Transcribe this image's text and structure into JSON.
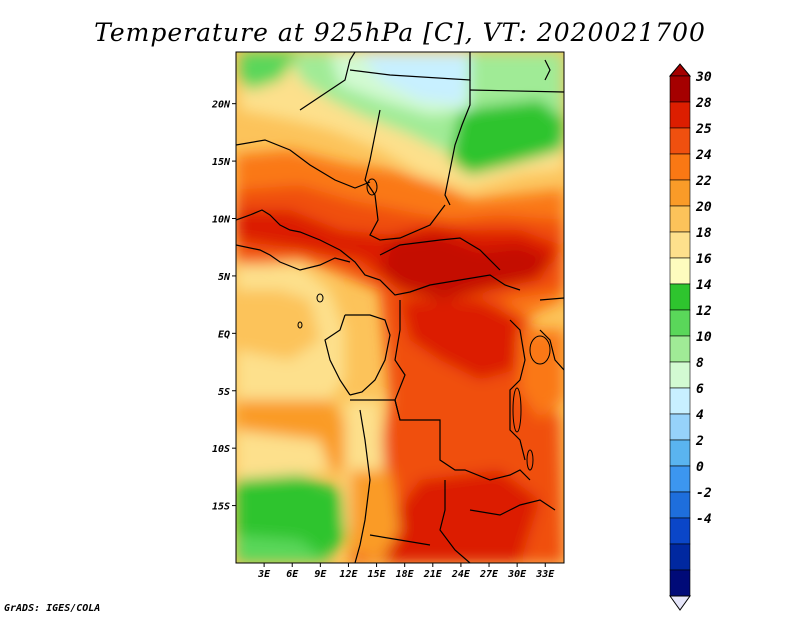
{
  "title": "Temperature at 925hPa [C], VT: 2020021700",
  "footer": "GrADS: IGES/COLA",
  "map": {
    "region": "Central Africa",
    "lon_range": [
      0,
      35
    ],
    "lat_range": [
      -20,
      24.5
    ],
    "lat_ticks": [
      {
        "value": 20,
        "label": "20N"
      },
      {
        "value": 15,
        "label": "15N"
      },
      {
        "value": 10,
        "label": "10N"
      },
      {
        "value": 5,
        "label": "5N"
      },
      {
        "value": 0,
        "label": "EQ"
      },
      {
        "value": -5,
        "label": "5S"
      },
      {
        "value": -10,
        "label": "10S"
      },
      {
        "value": -15,
        "label": "15S"
      }
    ],
    "lon_ticks": [
      {
        "value": 3,
        "label": "3E"
      },
      {
        "value": 6,
        "label": "6E"
      },
      {
        "value": 9,
        "label": "9E"
      },
      {
        "value": 12,
        "label": "12E"
      },
      {
        "value": 15,
        "label": "15E"
      },
      {
        "value": 18,
        "label": "18E"
      },
      {
        "value": 21,
        "label": "21E"
      },
      {
        "value": 24,
        "label": "24E"
      },
      {
        "value": 27,
        "label": "27E"
      },
      {
        "value": 30,
        "label": "30E"
      },
      {
        "value": 33,
        "label": "33E"
      }
    ]
  },
  "colorbar": {
    "levels": [
      {
        "label": "30",
        "color": "#a50000"
      },
      {
        "label": "28",
        "color": "#dc1e00"
      },
      {
        "label": "25",
        "color": "#f0500f"
      },
      {
        "label": "24",
        "color": "#fa7814"
      },
      {
        "label": "22",
        "color": "#fa9b28"
      },
      {
        "label": "20",
        "color": "#fcc35a"
      },
      {
        "label": "18",
        "color": "#fde08c"
      },
      {
        "label": "16",
        "color": "#fefcbe"
      },
      {
        "label": "14",
        "color": "#2ec42e"
      },
      {
        "label": "12",
        "color": "#5ad75a"
      },
      {
        "label": "10",
        "color": "#a0eb96"
      },
      {
        "label": "8",
        "color": "#d2fad2"
      },
      {
        "label": "6",
        "color": "#c8f0ff"
      },
      {
        "label": "4",
        "color": "#96d2fa"
      },
      {
        "label": "2",
        "color": "#5ab4f0"
      },
      {
        "label": "0",
        "color": "#3c96f0"
      },
      {
        "label": "-2",
        "color": "#1e6edc"
      },
      {
        "label": "-4",
        "color": "#0a46c8"
      }
    ],
    "bottom_colors": [
      "#0028a0",
      "#000a78"
    ],
    "top_cap": "#a50000",
    "bottom_cap": "#e6e6fa"
  }
}
